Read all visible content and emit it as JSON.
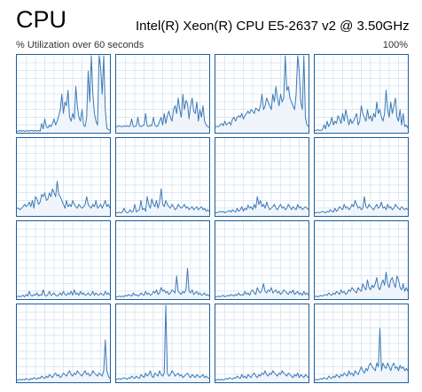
{
  "header": {
    "title": "CPU",
    "model": "Intel(R) Xeon(R) CPU E5-2637 v2 @ 3.50GHz",
    "utilization_label": "% Utilization over 60 seconds",
    "max_label": "100%"
  },
  "colors": {
    "border": "#1f5f9c",
    "line": "#3c7ab6",
    "fill": "#f0f5fb",
    "grid": "#dbe8f4"
  },
  "cores": [
    {
      "utilization": [
        2,
        2,
        3,
        2,
        3,
        2,
        2,
        3,
        2,
        3,
        3,
        2,
        3,
        2,
        3,
        2,
        12,
        5,
        18,
        8,
        6,
        10,
        8,
        12,
        18,
        10,
        15,
        22,
        30,
        50,
        25,
        40,
        35,
        55,
        20,
        15,
        25,
        18,
        60,
        35,
        20,
        15,
        30,
        10,
        8,
        20,
        80,
        40,
        100,
        50,
        25,
        15,
        10,
        100,
        85,
        50,
        100,
        30,
        6,
        4,
        3
      ]
    },
    {
      "utilization": [
        8,
        8,
        9,
        8,
        8,
        9,
        8,
        9,
        8,
        9,
        18,
        8,
        8,
        9,
        20,
        9,
        8,
        9,
        10,
        25,
        9,
        8,
        10,
        9,
        20,
        10,
        8,
        9,
        15,
        20,
        10,
        25,
        12,
        22,
        28,
        20,
        15,
        30,
        35,
        25,
        45,
        30,
        20,
        50,
        30,
        42,
        38,
        18,
        35,
        45,
        28,
        25,
        40,
        15,
        30,
        20,
        35,
        15,
        10,
        8,
        7
      ]
    },
    {
      "utilization": [
        8,
        8,
        8,
        10,
        12,
        9,
        15,
        10,
        12,
        14,
        10,
        18,
        20,
        15,
        20,
        22,
        20,
        25,
        18,
        22,
        25,
        28,
        25,
        30,
        28,
        25,
        32,
        30,
        28,
        35,
        50,
        30,
        35,
        45,
        40,
        35,
        30,
        50,
        40,
        60,
        45,
        35,
        50,
        40,
        45,
        100,
        55,
        60,
        45,
        40,
        35,
        30,
        50,
        100,
        80,
        40,
        30,
        100,
        20,
        10,
        8
      ]
    },
    {
      "utilization": [
        3,
        3,
        4,
        3,
        3,
        4,
        10,
        5,
        15,
        8,
        12,
        20,
        10,
        15,
        12,
        22,
        18,
        12,
        25,
        15,
        30,
        20,
        10,
        18,
        12,
        15,
        20,
        25,
        10,
        15,
        35,
        25,
        20,
        15,
        30,
        18,
        22,
        15,
        25,
        20,
        40,
        25,
        30,
        20,
        15,
        25,
        55,
        30,
        20,
        40,
        25,
        35,
        45,
        20,
        15,
        30,
        10,
        25,
        8,
        10,
        6
      ]
    },
    {
      "utilization": [
        10,
        10,
        8,
        10,
        12,
        15,
        12,
        14,
        18,
        12,
        20,
        10,
        25,
        22,
        15,
        18,
        28,
        25,
        30,
        20,
        22,
        30,
        25,
        35,
        30,
        25,
        45,
        28,
        25,
        20,
        15,
        10,
        20,
        12,
        15,
        12,
        20,
        15,
        12,
        10,
        15,
        12,
        10,
        12,
        15,
        25,
        15,
        12,
        10,
        15,
        12,
        20,
        10,
        12,
        15,
        10,
        15,
        20,
        12,
        15,
        10
      ]
    },
    {
      "utilization": [
        4,
        4,
        5,
        4,
        5,
        10,
        6,
        4,
        5,
        8,
        5,
        6,
        15,
        5,
        7,
        8,
        20,
        8,
        10,
        6,
        25,
        15,
        10,
        22,
        15,
        12,
        20,
        10,
        18,
        35,
        15,
        12,
        20,
        15,
        12,
        10,
        15,
        12,
        8,
        10,
        15,
        12,
        10,
        12,
        15,
        10,
        12,
        8,
        10,
        12,
        8,
        10,
        12,
        8,
        10,
        12,
        8,
        10,
        6,
        8,
        6
      ]
    },
    {
      "utilization": [
        4,
        4,
        5,
        6,
        5,
        6,
        4,
        5,
        6,
        7,
        5,
        8,
        6,
        5,
        10,
        6,
        8,
        12,
        6,
        10,
        8,
        14,
        10,
        12,
        8,
        15,
        10,
        25,
        15,
        20,
        12,
        15,
        10,
        18,
        12,
        8,
        10,
        12,
        15,
        10,
        8,
        12,
        15,
        10,
        12,
        8,
        10,
        15,
        12,
        8,
        12,
        10,
        8,
        15,
        10,
        12,
        8,
        10,
        12,
        10,
        8
      ]
    },
    {
      "utilization": [
        4,
        4,
        5,
        4,
        5,
        6,
        5,
        4,
        6,
        5,
        8,
        6,
        5,
        10,
        6,
        8,
        12,
        10,
        8,
        15,
        10,
        12,
        8,
        10,
        15,
        12,
        20,
        15,
        10,
        12,
        8,
        10,
        25,
        12,
        10,
        15,
        12,
        10,
        8,
        12,
        15,
        10,
        12,
        18,
        10,
        12,
        8,
        15,
        10,
        12,
        8,
        10,
        15,
        12,
        10,
        8,
        12,
        10,
        8,
        10,
        8
      ]
    },
    {
      "utilization": [
        3,
        4,
        3,
        4,
        5,
        3,
        6,
        4,
        10,
        5,
        4,
        6,
        5,
        8,
        4,
        6,
        5,
        12,
        5,
        4,
        6,
        10,
        5,
        6,
        8,
        5,
        4,
        6,
        8,
        5,
        10,
        6,
        5,
        8,
        6,
        10,
        5,
        12,
        6,
        8,
        5,
        10,
        6,
        8,
        5,
        6,
        8,
        5,
        6,
        10,
        5,
        8,
        6,
        5,
        8,
        6,
        5,
        10,
        6,
        8,
        5
      ]
    },
    {
      "utilization": [
        3,
        3,
        4,
        3,
        4,
        3,
        5,
        4,
        6,
        5,
        4,
        8,
        5,
        6,
        4,
        5,
        8,
        6,
        5,
        10,
        6,
        8,
        5,
        6,
        10,
        8,
        12,
        6,
        8,
        15,
        10,
        12,
        8,
        10,
        6,
        8,
        12,
        10,
        8,
        30,
        10,
        8,
        6,
        10,
        8,
        12,
        40,
        10,
        8,
        12,
        6,
        8,
        10,
        6,
        8,
        5,
        6,
        8,
        5,
        6,
        4
      ]
    },
    {
      "utilization": [
        3,
        3,
        4,
        3,
        4,
        5,
        3,
        4,
        5,
        4,
        6,
        5,
        4,
        6,
        5,
        8,
        5,
        6,
        5,
        10,
        6,
        8,
        5,
        10,
        12,
        8,
        6,
        15,
        10,
        8,
        12,
        20,
        10,
        8,
        12,
        10,
        15,
        8,
        10,
        12,
        8,
        10,
        6,
        8,
        12,
        10,
        8,
        6,
        10,
        8,
        12,
        6,
        8,
        10,
        6,
        8,
        5,
        10,
        6,
        8,
        5
      ]
    },
    {
      "utilization": [
        3,
        4,
        3,
        4,
        5,
        4,
        5,
        6,
        5,
        8,
        6,
        5,
        8,
        6,
        10,
        8,
        6,
        12,
        8,
        10,
        6,
        8,
        12,
        10,
        15,
        12,
        10,
        8,
        15,
        12,
        10,
        20,
        15,
        12,
        25,
        15,
        12,
        18,
        15,
        20,
        28,
        15,
        12,
        20,
        25,
        18,
        35,
        20,
        15,
        25,
        28,
        20,
        15,
        30,
        25,
        15,
        12,
        20,
        10,
        15,
        10
      ]
    },
    {
      "utilization": [
        3,
        3,
        4,
        3,
        4,
        3,
        5,
        4,
        3,
        5,
        4,
        6,
        5,
        4,
        6,
        5,
        8,
        6,
        5,
        8,
        6,
        10,
        8,
        6,
        10,
        12,
        8,
        10,
        6,
        8,
        12,
        10,
        8,
        12,
        15,
        10,
        8,
        12,
        10,
        15,
        12,
        10,
        8,
        12,
        15,
        10,
        12,
        8,
        10,
        15,
        12,
        10,
        8,
        12,
        10,
        8,
        15,
        55,
        15,
        8,
        5
      ]
    },
    {
      "utilization": [
        4,
        4,
        5,
        4,
        5,
        6,
        5,
        4,
        6,
        5,
        8,
        6,
        5,
        8,
        6,
        5,
        10,
        8,
        6,
        12,
        8,
        10,
        15,
        8,
        6,
        12,
        10,
        8,
        15,
        10,
        8,
        12,
        100,
        12,
        8,
        10,
        15,
        12,
        8,
        10,
        12,
        8,
        10,
        6,
        8,
        10,
        12,
        8,
        6,
        10,
        8,
        6,
        10,
        8,
        6,
        8,
        10,
        6,
        8,
        6,
        5
      ]
    },
    {
      "utilization": [
        3,
        3,
        4,
        3,
        4,
        3,
        4,
        5,
        4,
        6,
        5,
        4,
        6,
        5,
        8,
        6,
        5,
        10,
        6,
        8,
        5,
        10,
        8,
        6,
        10,
        12,
        8,
        6,
        10,
        8,
        12,
        10,
        15,
        10,
        8,
        12,
        10,
        15,
        12,
        10,
        8,
        12,
        10,
        15,
        12,
        10,
        8,
        12,
        10,
        8,
        6,
        10,
        8,
        12,
        6,
        10,
        8,
        6,
        10,
        8,
        6
      ]
    },
    {
      "utilization": [
        3,
        4,
        3,
        4,
        5,
        4,
        6,
        5,
        4,
        8,
        6,
        5,
        8,
        6,
        10,
        8,
        6,
        10,
        8,
        12,
        10,
        8,
        15,
        10,
        12,
        8,
        15,
        12,
        10,
        15,
        20,
        15,
        12,
        18,
        15,
        22,
        25,
        20,
        18,
        15,
        25,
        20,
        70,
        15,
        25,
        20,
        18,
        25,
        20,
        15,
        22,
        25,
        18,
        20,
        15,
        22,
        18,
        20,
        15,
        18,
        15
      ]
    }
  ]
}
